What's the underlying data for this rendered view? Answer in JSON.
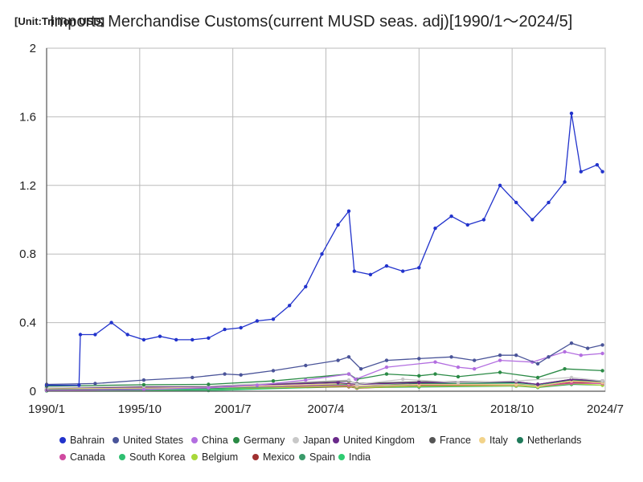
{
  "chart_data": {
    "type": "line",
    "title": "Imports Merchandise Customs(current MUSD seas. adj)[1990/1～2024/5]",
    "unit_label": "[Unit:Trillion USD]",
    "xlabel": "",
    "ylabel": "",
    "x_ticks": [
      "1990/1",
      "1995/10",
      "2001/7",
      "2007/4",
      "2013/1",
      "2018/10",
      "2024/7"
    ],
    "y_ticks": [
      "0",
      "0.4",
      "0.8",
      "1.2",
      "1.6",
      "2"
    ],
    "xlim": [
      "1990/1",
      "2024/7"
    ],
    "ylim": [
      0,
      2
    ],
    "grid": true,
    "legend_position": "bottom",
    "series": [
      {
        "name": "Bahrain",
        "color": "#2233cc",
        "markers": true,
        "points": [
          [
            "1990/1",
            0.035
          ],
          [
            "1992/1",
            0.035
          ],
          [
            "1992/2",
            0.33
          ],
          [
            "1993/1",
            0.33
          ],
          [
            "1994/1",
            0.4
          ],
          [
            "1995/1",
            0.33
          ],
          [
            "1996/1",
            0.3
          ],
          [
            "1997/1",
            0.32
          ],
          [
            "1998/1",
            0.3
          ],
          [
            "1999/1",
            0.3
          ],
          [
            "2000/1",
            0.31
          ],
          [
            "2001/1",
            0.36
          ],
          [
            "2002/1",
            0.37
          ],
          [
            "2003/1",
            0.41
          ],
          [
            "2004/1",
            0.42
          ],
          [
            "2005/1",
            0.5
          ],
          [
            "2006/1",
            0.61
          ],
          [
            "2007/1",
            0.8
          ],
          [
            "2008/1",
            0.97
          ],
          [
            "2008/9",
            1.05
          ],
          [
            "2009/1",
            0.7
          ],
          [
            "2010/1",
            0.68
          ],
          [
            "2011/1",
            0.73
          ],
          [
            "2012/1",
            0.7
          ],
          [
            "2013/1",
            0.72
          ],
          [
            "2014/1",
            0.95
          ],
          [
            "2015/1",
            1.02
          ],
          [
            "2016/1",
            0.97
          ],
          [
            "2017/1",
            1.0
          ],
          [
            "2018/1",
            1.2
          ],
          [
            "2019/1",
            1.1
          ],
          [
            "2020/1",
            1.0
          ],
          [
            "2021/1",
            1.1
          ],
          [
            "2022/1",
            1.22
          ],
          [
            "2022/6",
            1.62
          ],
          [
            "2023/1",
            1.28
          ],
          [
            "2024/1",
            1.32
          ],
          [
            "2024/5",
            1.28
          ]
        ]
      },
      {
        "name": "United States",
        "color": "#4a5499",
        "markers": true,
        "points": [
          [
            "1990/1",
            0.04
          ],
          [
            "1993/1",
            0.045
          ],
          [
            "1996/1",
            0.065
          ],
          [
            "1999/1",
            0.08
          ],
          [
            "2001/1",
            0.1
          ],
          [
            "2002/1",
            0.095
          ],
          [
            "2004/1",
            0.12
          ],
          [
            "2006/1",
            0.15
          ],
          [
            "2008/1",
            0.18
          ],
          [
            "2008/9",
            0.2
          ],
          [
            "2009/6",
            0.13
          ],
          [
            "2011/1",
            0.18
          ],
          [
            "2013/1",
            0.19
          ],
          [
            "2015/1",
            0.2
          ],
          [
            "2016/6",
            0.18
          ],
          [
            "2018/1",
            0.21
          ],
          [
            "2019/1",
            0.21
          ],
          [
            "2020/5",
            0.16
          ],
          [
            "2021/1",
            0.2
          ],
          [
            "2022/6",
            0.28
          ],
          [
            "2023/6",
            0.25
          ],
          [
            "2024/5",
            0.27
          ]
        ]
      },
      {
        "name": "China",
        "color": "#b36ee0",
        "markers": true,
        "points": [
          [
            "1990/1",
            0.005
          ],
          [
            "1996/1",
            0.01
          ],
          [
            "2000/1",
            0.02
          ],
          [
            "2003/1",
            0.035
          ],
          [
            "2006/1",
            0.065
          ],
          [
            "2008/9",
            0.1
          ],
          [
            "2009/2",
            0.07
          ],
          [
            "2011/1",
            0.14
          ],
          [
            "2014/1",
            0.17
          ],
          [
            "2015/6",
            0.14
          ],
          [
            "2016/6",
            0.13
          ],
          [
            "2018/1",
            0.18
          ],
          [
            "2020/1",
            0.17
          ],
          [
            "2021/1",
            0.2
          ],
          [
            "2022/1",
            0.23
          ],
          [
            "2023/1",
            0.21
          ],
          [
            "2024/5",
            0.22
          ]
        ]
      },
      {
        "name": "Germany",
        "color": "#2a8a45",
        "markers": true,
        "points": [
          [
            "1990/1",
            0.03
          ],
          [
            "1996/1",
            0.038
          ],
          [
            "2000/1",
            0.04
          ],
          [
            "2004/1",
            0.06
          ],
          [
            "2008/9",
            0.1
          ],
          [
            "2009/3",
            0.07
          ],
          [
            "2011/1",
            0.1
          ],
          [
            "2013/1",
            0.09
          ],
          [
            "2014/1",
            0.1
          ],
          [
            "2015/6",
            0.085
          ],
          [
            "2018/1",
            0.11
          ],
          [
            "2020/5",
            0.08
          ],
          [
            "2022/1",
            0.13
          ],
          [
            "2024/5",
            0.12
          ]
        ]
      },
      {
        "name": "Japan",
        "color": "#c8c8c8",
        "markers": true,
        "points": [
          [
            "1990/1",
            0.02
          ],
          [
            "1996/1",
            0.03
          ],
          [
            "2000/1",
            0.03
          ],
          [
            "2008/9",
            0.065
          ],
          [
            "2009/3",
            0.04
          ],
          [
            "2012/1",
            0.07
          ],
          [
            "2015/6",
            0.05
          ],
          [
            "2019/1",
            0.06
          ],
          [
            "2022/6",
            0.08
          ],
          [
            "2024/5",
            0.06
          ]
        ]
      },
      {
        "name": "United Kingdom",
        "color": "#6a2a8a",
        "markers": true,
        "points": [
          [
            "1990/1",
            0.02
          ],
          [
            "2000/1",
            0.028
          ],
          [
            "2008/1",
            0.05
          ],
          [
            "2009/3",
            0.04
          ],
          [
            "2013/1",
            0.05
          ],
          [
            "2019/1",
            0.055
          ],
          [
            "2020/5",
            0.04
          ],
          [
            "2022/6",
            0.07
          ],
          [
            "2024/5",
            0.06
          ]
        ]
      },
      {
        "name": "France",
        "color": "#555555",
        "markers": true,
        "points": [
          [
            "1990/1",
            0.02
          ],
          [
            "2000/1",
            0.027
          ],
          [
            "2008/9",
            0.06
          ],
          [
            "2009/3",
            0.045
          ],
          [
            "2013/1",
            0.055
          ],
          [
            "2019/1",
            0.055
          ],
          [
            "2020/5",
            0.04
          ],
          [
            "2022/6",
            0.07
          ],
          [
            "2024/5",
            0.06
          ]
        ]
      },
      {
        "name": "Italy",
        "color": "#f2d38a",
        "markers": true,
        "points": [
          [
            "1990/1",
            0.015
          ],
          [
            "2000/1",
            0.02
          ],
          [
            "2008/9",
            0.045
          ],
          [
            "2009/3",
            0.03
          ],
          [
            "2013/1",
            0.04
          ],
          [
            "2019/1",
            0.04
          ],
          [
            "2020/5",
            0.03
          ],
          [
            "2022/6",
            0.06
          ],
          [
            "2024/5",
            0.05
          ]
        ]
      },
      {
        "name": "Netherlands",
        "color": "#1f7a5a",
        "markers": true,
        "points": [
          [
            "1990/1",
            0.01
          ],
          [
            "2000/1",
            0.018
          ],
          [
            "2008/9",
            0.045
          ],
          [
            "2009/3",
            0.03
          ],
          [
            "2013/1",
            0.045
          ],
          [
            "2019/1",
            0.05
          ],
          [
            "2020/5",
            0.04
          ],
          [
            "2022/6",
            0.065
          ],
          [
            "2024/5",
            0.055
          ]
        ]
      },
      {
        "name": "Canada",
        "color": "#d04aa0",
        "markers": true,
        "points": [
          [
            "1990/1",
            0.01
          ],
          [
            "2000/1",
            0.02
          ],
          [
            "2008/9",
            0.035
          ],
          [
            "2009/3",
            0.027
          ],
          [
            "2013/1",
            0.038
          ],
          [
            "2019/1",
            0.038
          ],
          [
            "2020/5",
            0.03
          ],
          [
            "2022/6",
            0.048
          ],
          [
            "2024/5",
            0.045
          ]
        ]
      },
      {
        "name": "South Korea",
        "color": "#2fbf71",
        "markers": true,
        "points": [
          [
            "1990/1",
            0.006
          ],
          [
            "2000/1",
            0.013
          ],
          [
            "2008/9",
            0.04
          ],
          [
            "2009/3",
            0.025
          ],
          [
            "2013/1",
            0.043
          ],
          [
            "2019/1",
            0.042
          ],
          [
            "2020/5",
            0.033
          ],
          [
            "2022/6",
            0.062
          ],
          [
            "2024/5",
            0.05
          ]
        ]
      },
      {
        "name": "Belgium",
        "color": "#a8d83a",
        "markers": true,
        "points": [
          [
            "1990/1",
            0.008
          ],
          [
            "2000/1",
            0.013
          ],
          [
            "2008/9",
            0.03
          ],
          [
            "2009/3",
            0.02
          ],
          [
            "2013/1",
            0.03
          ],
          [
            "2019/1",
            0.032
          ],
          [
            "2020/5",
            0.025
          ],
          [
            "2022/6",
            0.045
          ],
          [
            "2024/5",
            0.035
          ]
        ]
      },
      {
        "name": "Mexico",
        "color": "#a03030",
        "markers": true,
        "points": [
          [
            "1990/1",
            0.004
          ],
          [
            "2000/1",
            0.015
          ],
          [
            "2008/9",
            0.026
          ],
          [
            "2009/3",
            0.018
          ],
          [
            "2013/1",
            0.032
          ],
          [
            "2019/1",
            0.038
          ],
          [
            "2020/5",
            0.028
          ],
          [
            "2022/6",
            0.052
          ],
          [
            "2024/5",
            0.05
          ]
        ]
      },
      {
        "name": "Spain",
        "color": "#3a9a6a",
        "markers": true,
        "points": [
          [
            "1990/1",
            0.006
          ],
          [
            "2000/1",
            0.011
          ],
          [
            "2008/9",
            0.03
          ],
          [
            "2009/3",
            0.02
          ],
          [
            "2013/1",
            0.025
          ],
          [
            "2019/1",
            0.03
          ],
          [
            "2020/5",
            0.022
          ],
          [
            "2022/6",
            0.04
          ],
          [
            "2024/5",
            0.035
          ]
        ]
      },
      {
        "name": "India",
        "color": "#2ecc71",
        "markers": true,
        "points": [
          [
            "1990/1",
            0.002
          ],
          [
            "2000/1",
            0.004
          ],
          [
            "2008/9",
            0.027
          ],
          [
            "2009/3",
            0.02
          ],
          [
            "2013/1",
            0.04
          ],
          [
            "2019/1",
            0.042
          ],
          [
            "2020/5",
            0.025
          ],
          [
            "2022/6",
            0.065
          ],
          [
            "2024/5",
            0.055
          ]
        ]
      }
    ]
  }
}
